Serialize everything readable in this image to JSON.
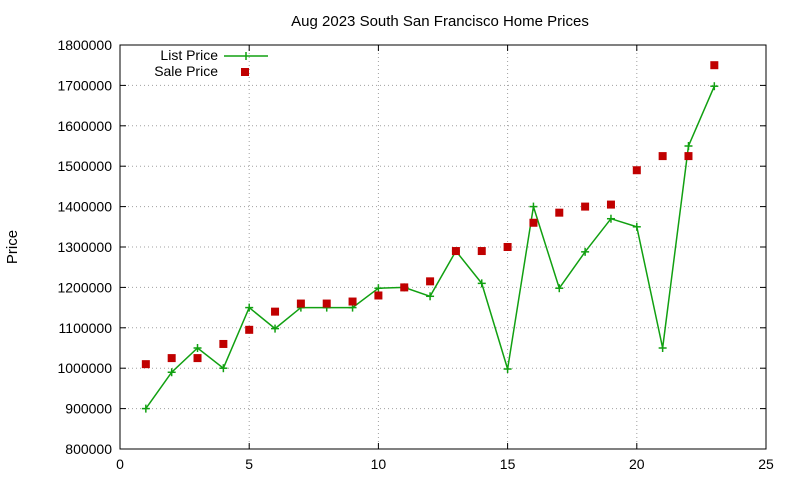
{
  "chart_data": {
    "type": "line",
    "title": "Aug 2023 South San Francisco Home Prices",
    "xlabel": "",
    "ylabel": "Price",
    "xlim": [
      0,
      25
    ],
    "ylim": [
      800000,
      1800000
    ],
    "xticks": [
      0,
      5,
      10,
      15,
      20,
      25
    ],
    "yticks": [
      800000,
      900000,
      1000000,
      1100000,
      1200000,
      1300000,
      1400000,
      1500000,
      1600000,
      1700000,
      1800000
    ],
    "grid": true,
    "legend_position": "top-left",
    "series": [
      {
        "name": "List Price",
        "style": "line-with-plus-markers",
        "color": "#11a011",
        "x": [
          1,
          2,
          3,
          4,
          5,
          6,
          7,
          8,
          9,
          10,
          11,
          12,
          13,
          14,
          15,
          16,
          17,
          18,
          19,
          20,
          21,
          22,
          23
        ],
        "values": [
          900000,
          990000,
          1050000,
          1000000,
          1150000,
          1098000,
          1150000,
          1150000,
          1150000,
          1198000,
          1200000,
          1178000,
          1290000,
          1210000,
          998000,
          1400000,
          1198000,
          1288000,
          1370000,
          1350000,
          1050000,
          1550000,
          1698000
        ]
      },
      {
        "name": "Sale Price",
        "style": "square-markers",
        "color": "#c00000",
        "x": [
          1,
          2,
          3,
          4,
          5,
          6,
          7,
          8,
          9,
          10,
          11,
          12,
          13,
          14,
          15,
          16,
          17,
          18,
          19,
          20,
          21,
          22,
          23
        ],
        "values": [
          1010000,
          1025000,
          1025000,
          1060000,
          1095000,
          1140000,
          1160000,
          1160000,
          1165000,
          1180000,
          1200000,
          1215000,
          1290000,
          1290000,
          1300000,
          1360000,
          1385000,
          1400000,
          1405000,
          1490000,
          1525000,
          1525000,
          1750000
        ]
      }
    ]
  }
}
